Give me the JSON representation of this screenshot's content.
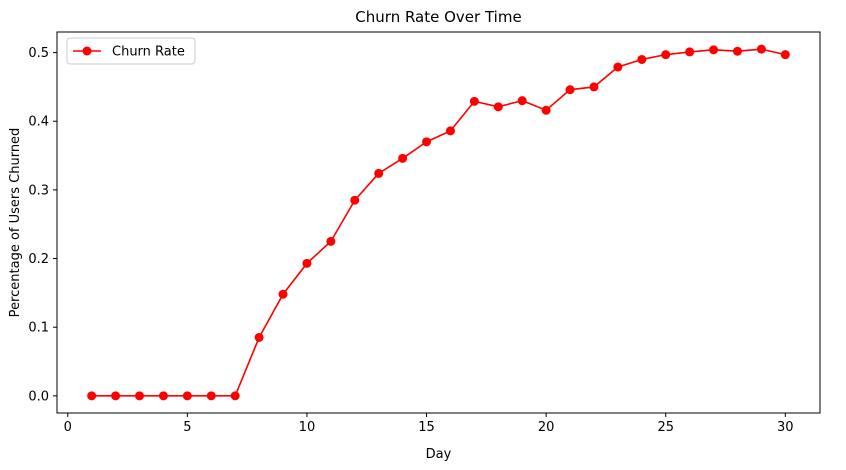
{
  "chart_data": {
    "type": "line",
    "title": "Churn Rate Over Time",
    "xlabel": "Day",
    "ylabel": "Percentage of Users Churned",
    "xlim": [
      -0.45,
      31.45
    ],
    "ylim": [
      -0.025,
      0.53
    ],
    "xticks": [
      0,
      5,
      10,
      15,
      20,
      25,
      30
    ],
    "xtick_labels": [
      "0",
      "5",
      "10",
      "15",
      "20",
      "25",
      "30"
    ],
    "yticks": [
      0.0,
      0.1,
      0.2,
      0.3,
      0.4,
      0.5
    ],
    "ytick_labels": [
      "0.0",
      "0.1",
      "0.2",
      "0.3",
      "0.4",
      "0.5"
    ],
    "grid": false,
    "legend_position": "top-left",
    "series": [
      {
        "name": "Churn Rate",
        "color": "#ff0000",
        "marker": "circle",
        "x": [
          1,
          2,
          3,
          4,
          5,
          6,
          7,
          8,
          9,
          10,
          11,
          12,
          13,
          14,
          15,
          16,
          17,
          18,
          19,
          20,
          21,
          22,
          23,
          24,
          25,
          26,
          27,
          28,
          29,
          30
        ],
        "y": [
          0.0,
          0.0,
          0.0,
          0.0,
          0.0,
          0.0,
          0.0,
          0.085,
          0.148,
          0.193,
          0.225,
          0.285,
          0.324,
          0.346,
          0.37,
          0.386,
          0.429,
          0.421,
          0.43,
          0.416,
          0.446,
          0.45,
          0.479,
          0.49,
          0.497,
          0.501,
          0.504,
          0.502,
          0.505,
          0.497
        ]
      }
    ]
  }
}
